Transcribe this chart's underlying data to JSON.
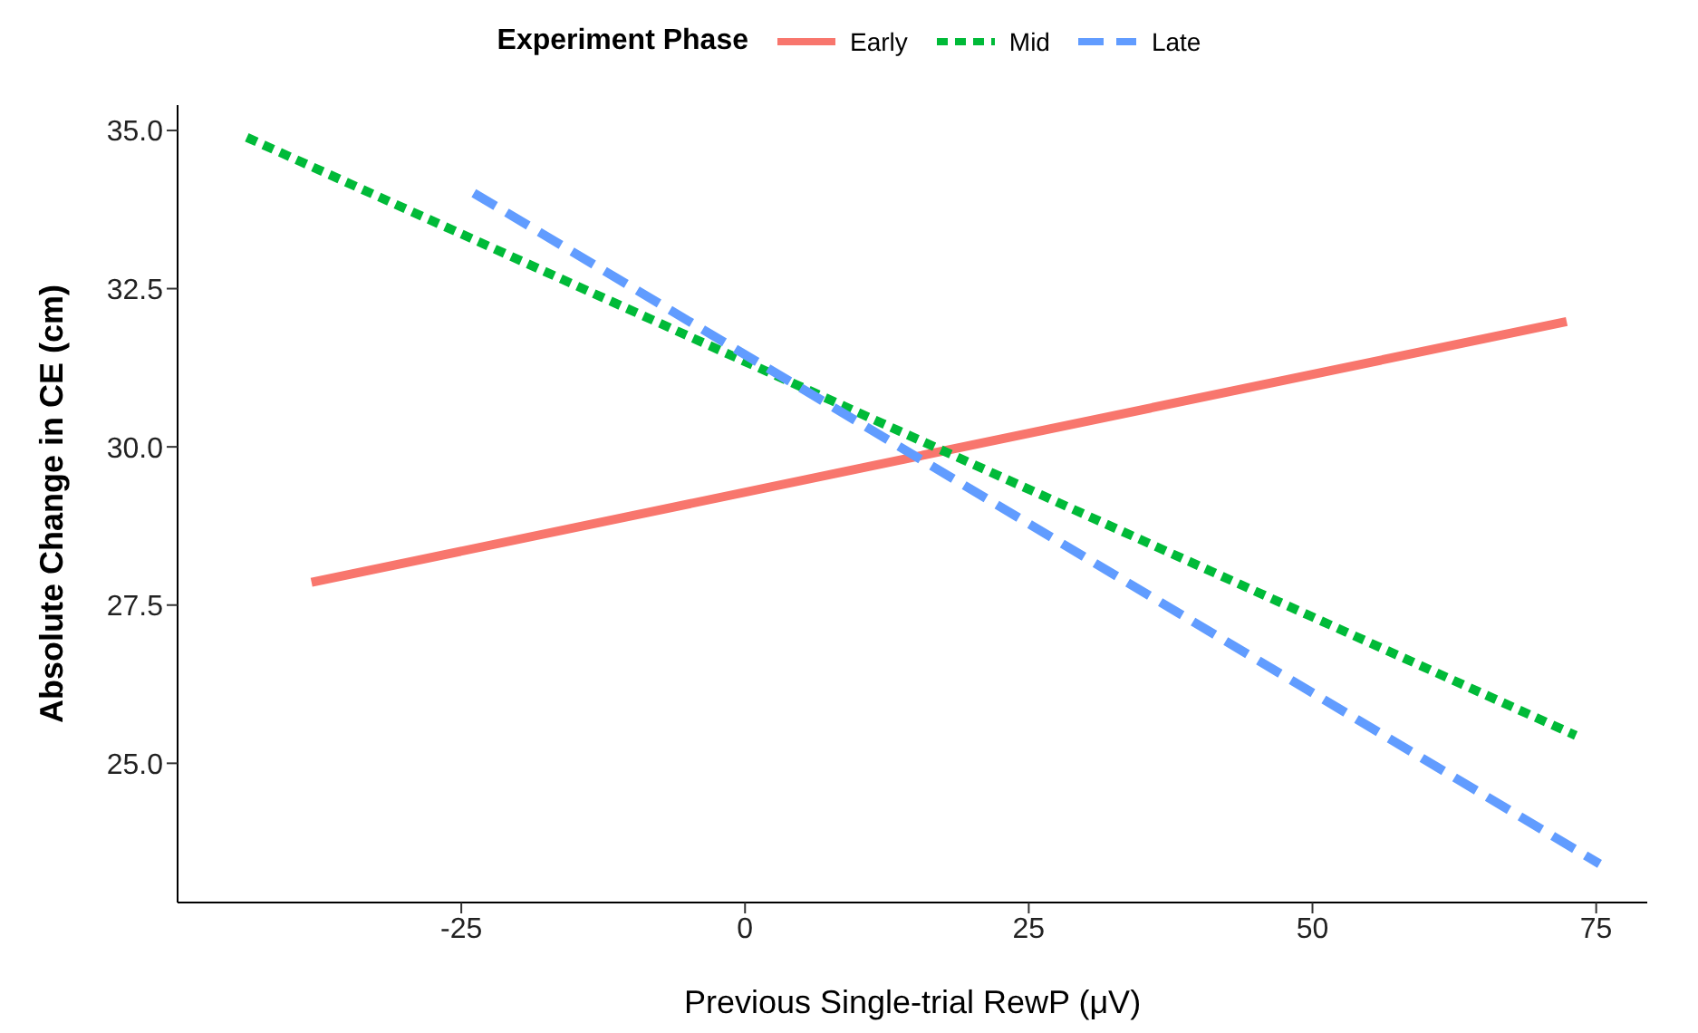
{
  "chart_data": {
    "type": "line",
    "xlabel": "Previous Single-trial RewP (μV)",
    "ylabel": "Absolute Change in CE (cm)",
    "legend_title": "Experiment Phase",
    "legend": "top",
    "xlim": [
      -50,
      79.5
    ],
    "xticks": [
      -25,
      0,
      25,
      50,
      75
    ],
    "ylim": [
      22.8,
      35.4
    ],
    "yticks": [
      {
        "value": 25,
        "label": "25.0"
      },
      {
        "value": 27.5,
        "label": "27.5"
      },
      {
        "value": 30,
        "label": "30.0"
      },
      {
        "value": 32.5,
        "label": "32.5"
      },
      {
        "value": 35,
        "label": "35.0"
      }
    ],
    "series": [
      {
        "name": "Early",
        "color": "#f8766d",
        "line_style": "solid",
        "x": [
          -38.2,
          72.4
        ],
        "values": [
          27.86,
          31.98
        ]
      },
      {
        "name": "Mid",
        "color": "#00ba38",
        "line_style": "dotted",
        "x": [
          -43.9,
          73.2
        ],
        "values": [
          34.89,
          25.44
        ]
      },
      {
        "name": "Late",
        "color": "#619cff",
        "line_style": "dashed",
        "x": [
          -23.9,
          75.3
        ],
        "values": [
          34.01,
          23.41
        ]
      }
    ]
  }
}
